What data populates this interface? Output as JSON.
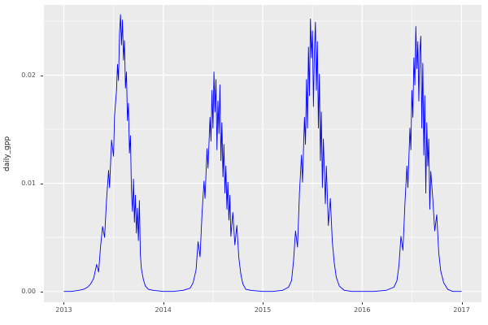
{
  "chart_data": {
    "type": "line",
    "title": "",
    "xlabel": "",
    "ylabel": "daily_gpp",
    "xlim": [
      2012.8,
      2017.2
    ],
    "ylim": [
      -0.001,
      0.0265
    ],
    "x_tick_values": [
      2013,
      2014,
      2015,
      2016,
      2017
    ],
    "x_tick_labels": [
      "2013",
      "2014",
      "2015",
      "2016",
      "2017"
    ],
    "y_tick_values": [
      0,
      0.01,
      0.02
    ],
    "y_tick_labels": [
      "0.00",
      "0.01",
      "0.02"
    ],
    "grid": "on",
    "legend": "none",
    "panel_background": "#EBEBEB",
    "grid_color": "#FFFFFF",
    "line_color": "#0000FF",
    "series": [
      {
        "name": "daily_gpp",
        "points": [
          [
            2013.0,
            0.0
          ],
          [
            2013.08,
            0.0
          ],
          [
            2013.15,
            0.0001
          ],
          [
            2013.2,
            0.0002
          ],
          [
            2013.24,
            0.0004
          ],
          [
            2013.27,
            0.0007
          ],
          [
            2013.3,
            0.0012
          ],
          [
            2013.33,
            0.0025
          ],
          [
            2013.35,
            0.0018
          ],
          [
            2013.37,
            0.0042
          ],
          [
            2013.39,
            0.006
          ],
          [
            2013.41,
            0.005
          ],
          [
            2013.43,
            0.0085
          ],
          [
            2013.45,
            0.0112
          ],
          [
            2013.46,
            0.0096
          ],
          [
            2013.48,
            0.014
          ],
          [
            2013.5,
            0.0125
          ],
          [
            2013.51,
            0.0162
          ],
          [
            2013.53,
            0.0186
          ],
          [
            2013.54,
            0.021
          ],
          [
            2013.55,
            0.0195
          ],
          [
            2013.56,
            0.0238
          ],
          [
            2013.57,
            0.0256
          ],
          [
            2013.58,
            0.0228
          ],
          [
            2013.59,
            0.0251
          ],
          [
            2013.6,
            0.0214
          ],
          [
            2013.61,
            0.0232
          ],
          [
            2013.62,
            0.0188
          ],
          [
            2013.63,
            0.0203
          ],
          [
            2013.64,
            0.0158
          ],
          [
            2013.65,
            0.0174
          ],
          [
            2013.66,
            0.0128
          ],
          [
            2013.67,
            0.0144
          ],
          [
            2013.68,
            0.0094
          ],
          [
            2013.69,
            0.0074
          ],
          [
            2013.7,
            0.0104
          ],
          [
            2013.71,
            0.0064
          ],
          [
            2013.72,
            0.0089
          ],
          [
            2013.73,
            0.0054
          ],
          [
            2013.74,
            0.0077
          ],
          [
            2013.75,
            0.0047
          ],
          [
            2013.76,
            0.0084
          ],
          [
            2013.77,
            0.0034
          ],
          [
            2013.78,
            0.0021
          ],
          [
            2013.8,
            0.0011
          ],
          [
            2013.82,
            0.0005
          ],
          [
            2013.85,
            0.0002
          ],
          [
            2013.9,
            0.0001
          ],
          [
            2014.0,
            0.0
          ],
          [
            2014.1,
            0.0
          ],
          [
            2014.2,
            0.0001
          ],
          [
            2014.27,
            0.0003
          ],
          [
            2014.3,
            0.0008
          ],
          [
            2014.33,
            0.002
          ],
          [
            2014.35,
            0.0046
          ],
          [
            2014.37,
            0.0032
          ],
          [
            2014.39,
            0.0072
          ],
          [
            2014.41,
            0.0102
          ],
          [
            2014.42,
            0.0086
          ],
          [
            2014.44,
            0.0132
          ],
          [
            2014.45,
            0.0114
          ],
          [
            2014.47,
            0.0161
          ],
          [
            2014.48,
            0.0139
          ],
          [
            2014.49,
            0.0186
          ],
          [
            2014.5,
            0.0151
          ],
          [
            2014.51,
            0.0203
          ],
          [
            2014.52,
            0.0166
          ],
          [
            2014.53,
            0.0196
          ],
          [
            2014.54,
            0.0131
          ],
          [
            2014.55,
            0.0176
          ],
          [
            2014.56,
            0.0146
          ],
          [
            2014.57,
            0.0191
          ],
          [
            2014.58,
            0.0121
          ],
          [
            2014.59,
            0.0156
          ],
          [
            2014.6,
            0.0106
          ],
          [
            2014.61,
            0.0136
          ],
          [
            2014.62,
            0.0091
          ],
          [
            2014.63,
            0.0116
          ],
          [
            2014.64,
            0.0076
          ],
          [
            2014.65,
            0.0101
          ],
          [
            2014.66,
            0.0066
          ],
          [
            2014.67,
            0.0089
          ],
          [
            2014.68,
            0.0051
          ],
          [
            2014.7,
            0.0073
          ],
          [
            2014.72,
            0.0043
          ],
          [
            2014.74,
            0.0061
          ],
          [
            2014.76,
            0.0031
          ],
          [
            2014.78,
            0.0016
          ],
          [
            2014.8,
            0.0007
          ],
          [
            2014.83,
            0.0002
          ],
          [
            2014.88,
            0.0001
          ],
          [
            2015.0,
            0.0
          ],
          [
            2015.1,
            0.0
          ],
          [
            2015.2,
            0.0001
          ],
          [
            2015.26,
            0.0004
          ],
          [
            2015.29,
            0.001
          ],
          [
            2015.31,
            0.0028
          ],
          [
            2015.33,
            0.0056
          ],
          [
            2015.35,
            0.0041
          ],
          [
            2015.37,
            0.0092
          ],
          [
            2015.39,
            0.0126
          ],
          [
            2015.4,
            0.0101
          ],
          [
            2015.42,
            0.0161
          ],
          [
            2015.43,
            0.0136
          ],
          [
            2015.44,
            0.0196
          ],
          [
            2015.45,
            0.0151
          ],
          [
            2015.46,
            0.0226
          ],
          [
            2015.47,
            0.0181
          ],
          [
            2015.48,
            0.0252
          ],
          [
            2015.49,
            0.0216
          ],
          [
            2015.5,
            0.0241
          ],
          [
            2015.51,
            0.0171
          ],
          [
            2015.52,
            0.0221
          ],
          [
            2015.53,
            0.0249
          ],
          [
            2015.54,
            0.0186
          ],
          [
            2015.55,
            0.0231
          ],
          [
            2015.56,
            0.0151
          ],
          [
            2015.57,
            0.0201
          ],
          [
            2015.58,
            0.0121
          ],
          [
            2015.59,
            0.0166
          ],
          [
            2015.6,
            0.0096
          ],
          [
            2015.61,
            0.0141
          ],
          [
            2015.62,
            0.0111
          ],
          [
            2015.63,
            0.0081
          ],
          [
            2015.64,
            0.0116
          ],
          [
            2015.66,
            0.0061
          ],
          [
            2015.68,
            0.0086
          ],
          [
            2015.7,
            0.0046
          ],
          [
            2015.72,
            0.0026
          ],
          [
            2015.74,
            0.0013
          ],
          [
            2015.77,
            0.0005
          ],
          [
            2015.82,
            0.0001
          ],
          [
            2015.9,
            0.0
          ],
          [
            2016.0,
            0.0
          ],
          [
            2016.12,
            0.0
          ],
          [
            2016.24,
            0.0001
          ],
          [
            2016.32,
            0.0004
          ],
          [
            2016.35,
            0.001
          ],
          [
            2016.37,
            0.0024
          ],
          [
            2016.39,
            0.0051
          ],
          [
            2016.41,
            0.0038
          ],
          [
            2016.43,
            0.0081
          ],
          [
            2016.45,
            0.0116
          ],
          [
            2016.46,
            0.0096
          ],
          [
            2016.48,
            0.0151
          ],
          [
            2016.49,
            0.0131
          ],
          [
            2016.5,
            0.0186
          ],
          [
            2016.51,
            0.0161
          ],
          [
            2016.52,
            0.0216
          ],
          [
            2016.53,
            0.0191
          ],
          [
            2016.54,
            0.0245
          ],
          [
            2016.55,
            0.0206
          ],
          [
            2016.56,
            0.0231
          ],
          [
            2016.57,
            0.0176
          ],
          [
            2016.58,
            0.0221
          ],
          [
            2016.59,
            0.0236
          ],
          [
            2016.6,
            0.0151
          ],
          [
            2016.61,
            0.0211
          ],
          [
            2016.62,
            0.0126
          ],
          [
            2016.63,
            0.0181
          ],
          [
            2016.64,
            0.0091
          ],
          [
            2016.65,
            0.0156
          ],
          [
            2016.66,
            0.0116
          ],
          [
            2016.67,
            0.0141
          ],
          [
            2016.68,
            0.0076
          ],
          [
            2016.69,
            0.0111
          ],
          [
            2016.71,
            0.0086
          ],
          [
            2016.73,
            0.0056
          ],
          [
            2016.75,
            0.0071
          ],
          [
            2016.77,
            0.0036
          ],
          [
            2016.79,
            0.0019
          ],
          [
            2016.82,
            0.0008
          ],
          [
            2016.86,
            0.0002
          ],
          [
            2016.91,
            0.0
          ],
          [
            2017.0,
            0.0
          ]
        ]
      }
    ]
  }
}
